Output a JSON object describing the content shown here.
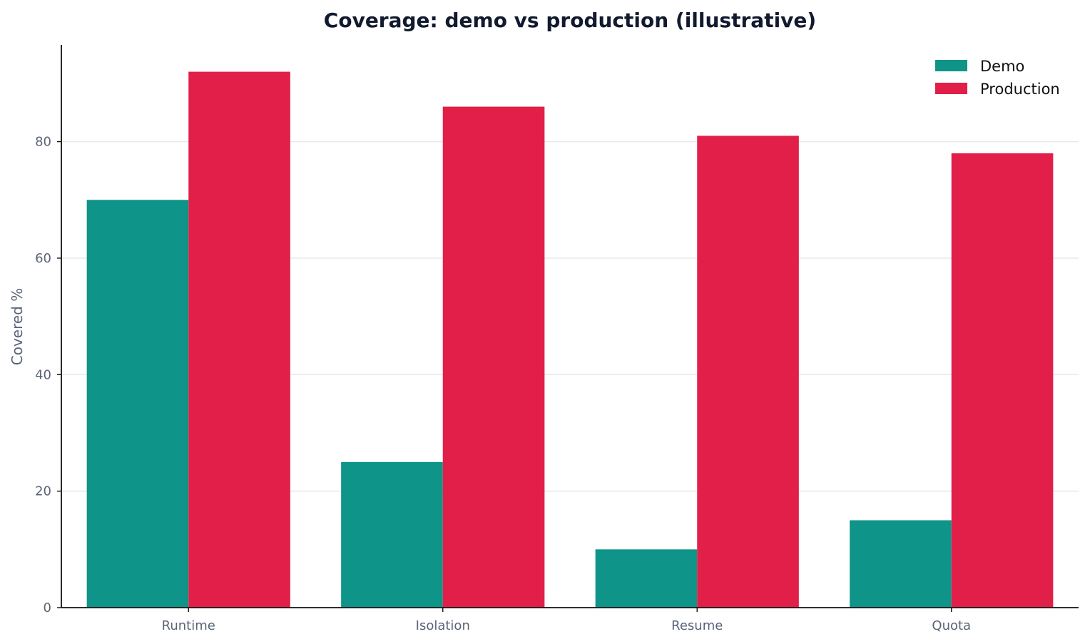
{
  "chart_data": {
    "type": "bar",
    "title": "Coverage: demo vs production (illustrative)",
    "xlabel": "",
    "ylabel": "Covered %",
    "categories": [
      "Runtime",
      "Isolation",
      "Resume",
      "Quota"
    ],
    "series": [
      {
        "name": "Demo",
        "color": "#0e9488",
        "values": [
          70,
          25,
          10,
          15
        ]
      },
      {
        "name": "Production",
        "color": "#e11f48",
        "values": [
          92,
          86,
          81,
          78
        ]
      }
    ],
    "ylim": [
      0,
      96.6
    ],
    "yticks": [
      0,
      20,
      40,
      60,
      80
    ],
    "grid": "y",
    "legend_position": "top-right"
  }
}
